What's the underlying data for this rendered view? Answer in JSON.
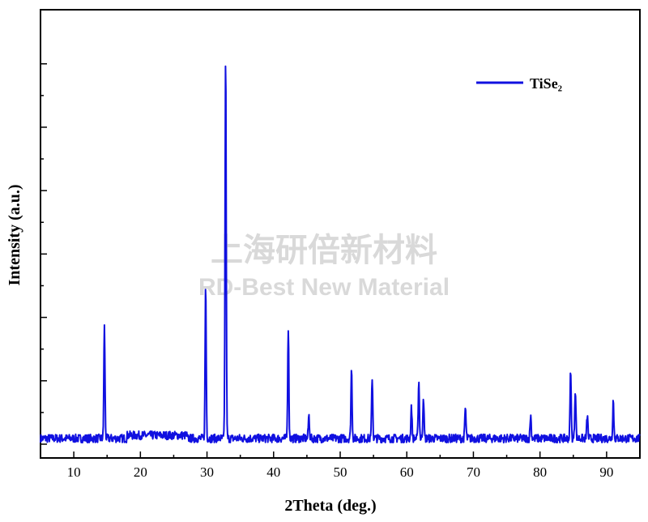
{
  "watermark": {
    "line1": "上海研倍新材料",
    "line2": "RD-Best New Material"
  },
  "chart_data": {
    "type": "line",
    "title": "",
    "xlabel": "2Theta (deg.)",
    "ylabel": "Intensity (a.u.)",
    "xlim": [
      5,
      95
    ],
    "ylim": [
      0,
      100
    ],
    "x_ticks": [
      10,
      20,
      30,
      40,
      50,
      60,
      70,
      80,
      90
    ],
    "y_tick_labels_shown": false,
    "grid": false,
    "legend": {
      "position": "top-right"
    },
    "series": [
      {
        "name": "TiSe₂",
        "color": "#1010e0",
        "baseline": 1.5,
        "peaks": [
          [
            14.6,
            29
          ],
          [
            29.8,
            40
          ],
          [
            32.8,
            100
          ],
          [
            42.2,
            29
          ],
          [
            45.3,
            6
          ],
          [
            51.7,
            18
          ],
          [
            54.8,
            16
          ],
          [
            60.7,
            8
          ],
          [
            61.8,
            15
          ],
          [
            62.5,
            11
          ],
          [
            68.8,
            8
          ],
          [
            78.6,
            6
          ],
          [
            84.6,
            18
          ],
          [
            85.3,
            13
          ],
          [
            87.1,
            6
          ],
          [
            91.0,
            10
          ]
        ]
      }
    ]
  }
}
